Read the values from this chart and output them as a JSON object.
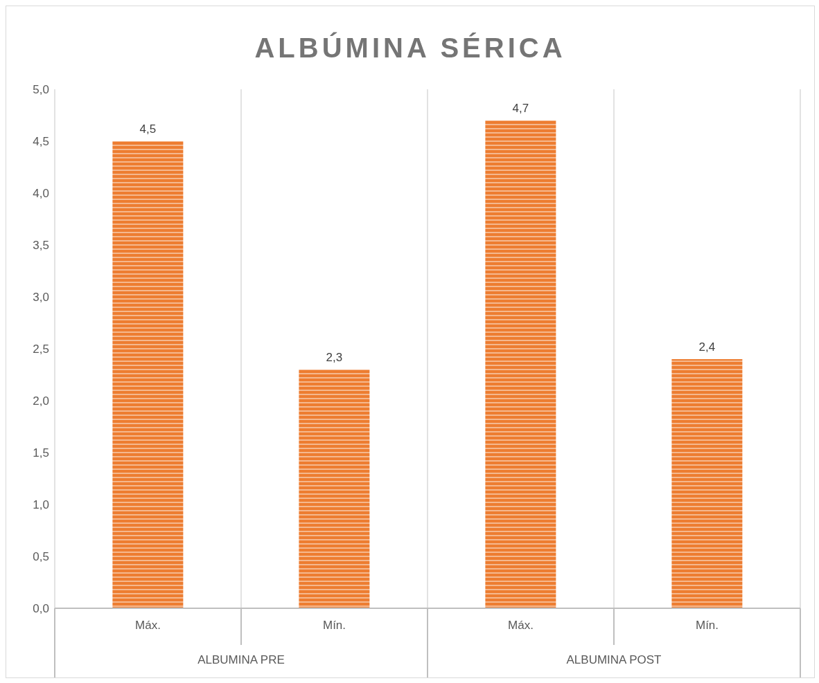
{
  "chart_data": {
    "type": "bar",
    "title": "ALBÚMINA SÉRICA",
    "categories": [
      "Máx.",
      "Mín.",
      "Máx.",
      "Mín."
    ],
    "values": [
      4.5,
      2.3,
      4.7,
      2.4
    ],
    "color": "#ed7d31",
    "value_labels": [
      "4,5",
      "2,3",
      "4,7",
      "2,4"
    ],
    "annotations": [
      "ALBUMINA PRE",
      "ALBUMINA POST"
    ],
    "ylim": [
      0,
      5
    ],
    "yticks": [
      {
        "value": 0,
        "label": "0,0"
      },
      {
        "value": 0.5,
        "label": "0,5"
      },
      {
        "value": 1,
        "label": "1,0"
      },
      {
        "value": 1.5,
        "label": "1,5"
      },
      {
        "value": 2,
        "label": "2,0"
      },
      {
        "value": 2.5,
        "label": "2,5"
      },
      {
        "value": 3,
        "label": "3,0"
      },
      {
        "value": 3.5,
        "label": "3,5"
      },
      {
        "value": 4,
        "label": "4,0"
      },
      {
        "value": 4.5,
        "label": "4,5"
      },
      {
        "value": 5,
        "label": "5,0"
      }
    ],
    "grid": "x",
    "legend": false
  }
}
